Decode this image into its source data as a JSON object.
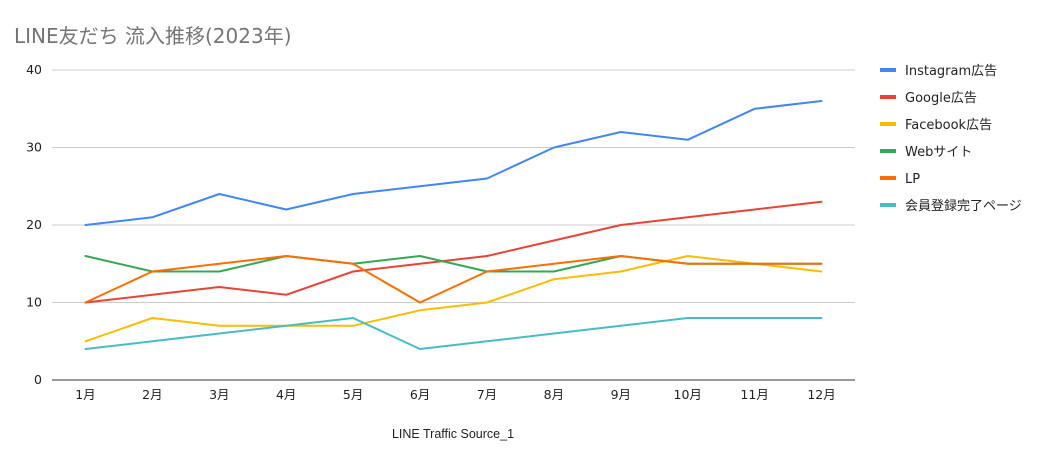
{
  "chart_data": {
    "type": "line",
    "title": "LINE友だち 流入推移(2023年)",
    "xlabel": "LINE Traffic Source_1",
    "ylabel": "",
    "categories": [
      "1月",
      "2月",
      "3月",
      "4月",
      "5月",
      "6月",
      "7月",
      "8月",
      "9月",
      "10月",
      "11月",
      "12月"
    ],
    "ylim": [
      0,
      40
    ],
    "yticks": [
      0,
      10,
      20,
      30,
      40
    ],
    "grid": true,
    "legend_position": "right",
    "series": [
      {
        "name": "Instagram広告",
        "color": "#4285F4",
        "values": [
          20,
          21,
          24,
          22,
          24,
          25,
          26,
          30,
          32,
          31,
          35,
          36
        ]
      },
      {
        "name": "Google広告",
        "color": "#EA4335",
        "values": [
          10,
          11,
          12,
          11,
          14,
          15,
          16,
          18,
          20,
          21,
          22,
          23
        ]
      },
      {
        "name": "Facebook広告",
        "color": "#FBBC04",
        "values": [
          5,
          8,
          7,
          7,
          7,
          9,
          10,
          13,
          14,
          16,
          15,
          14
        ]
      },
      {
        "name": "Webサイト",
        "color": "#34A853",
        "values": [
          16,
          14,
          14,
          16,
          15,
          16,
          14,
          14,
          16,
          15,
          15,
          15
        ]
      },
      {
        "name": "LP",
        "color": "#FF6D01",
        "values": [
          10,
          14,
          15,
          16,
          15,
          10,
          14,
          15,
          16,
          15,
          15,
          15
        ]
      },
      {
        "name": "会員登録完了ページ",
        "color": "#46BDC6",
        "values": [
          4,
          5,
          6,
          7,
          8,
          4,
          5,
          6,
          7,
          8,
          8,
          8
        ]
      }
    ]
  }
}
